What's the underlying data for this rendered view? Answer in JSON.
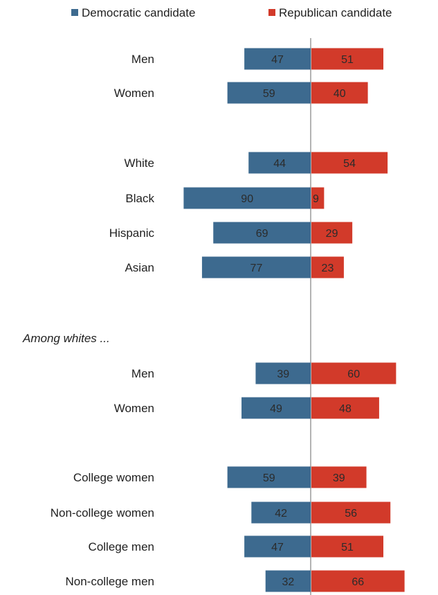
{
  "chart_data": {
    "type": "bar",
    "orientation": "diverging-horizontal",
    "legend_position": "top",
    "series": [
      {
        "name": "Democratic candidate",
        "color": "#3d6a8f"
      },
      {
        "name": "Republican candidate",
        "color": "#d23a2a"
      }
    ],
    "section_label": "Among whites ...",
    "rows": [
      {
        "label": "Men",
        "dem": 47,
        "rep": 51
      },
      {
        "label": "Women",
        "dem": 59,
        "rep": 40
      },
      {
        "label": "White",
        "dem": 44,
        "rep": 54
      },
      {
        "label": "Black",
        "dem": 90,
        "rep": 9
      },
      {
        "label": "Hispanic",
        "dem": 69,
        "rep": 29
      },
      {
        "label": "Asian",
        "dem": 77,
        "rep": 23
      },
      {
        "label": "Men",
        "dem": 39,
        "rep": 60
      },
      {
        "label": "Women",
        "dem": 49,
        "rep": 48
      },
      {
        "label": "College women",
        "dem": 59,
        "rep": 39
      },
      {
        "label": "Non-college women",
        "dem": 42,
        "rep": 56
      },
      {
        "label": "College men",
        "dem": 47,
        "rep": 51
      },
      {
        "label": "Non-college men",
        "dem": 32,
        "rep": 66
      }
    ]
  }
}
